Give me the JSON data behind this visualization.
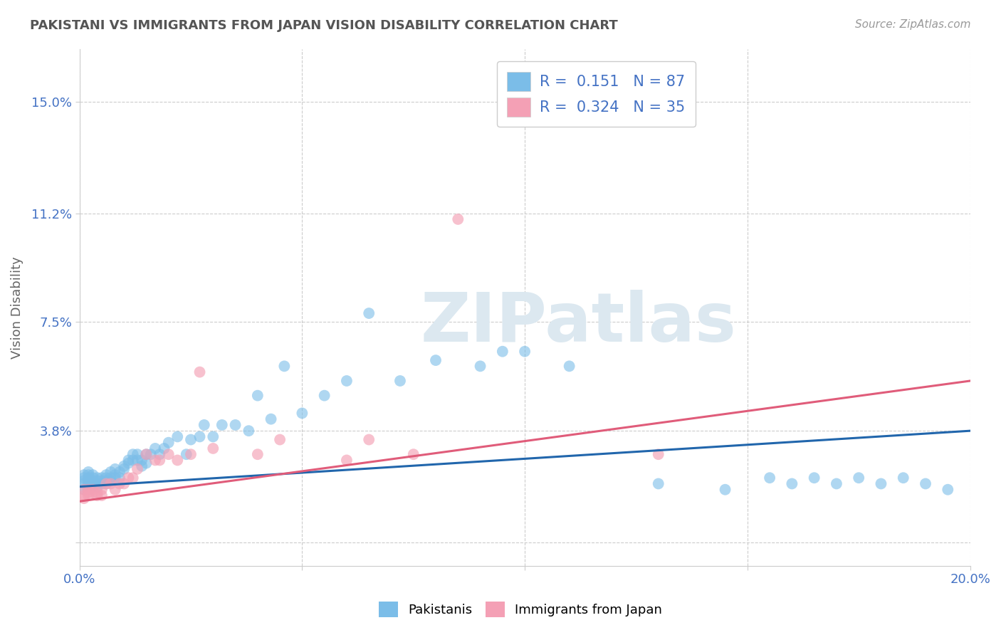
{
  "title": "PAKISTANI VS IMMIGRANTS FROM JAPAN VISION DISABILITY CORRELATION CHART",
  "source": "Source: ZipAtlas.com",
  "ylabel": "Vision Disability",
  "xlim": [
    0.0,
    0.2
  ],
  "ylim": [
    -0.008,
    0.168
  ],
  "xticks": [
    0.0,
    0.05,
    0.1,
    0.15,
    0.2
  ],
  "xticklabels": [
    "0.0%",
    "",
    "",
    "",
    "20.0%"
  ],
  "yticks": [
    0.0,
    0.038,
    0.075,
    0.112,
    0.15
  ],
  "yticklabels": [
    "",
    "3.8%",
    "7.5%",
    "11.2%",
    "15.0%"
  ],
  "blue_R": 0.151,
  "blue_N": 87,
  "pink_R": 0.324,
  "pink_N": 35,
  "blue_color": "#7bbde8",
  "pink_color": "#f4a0b5",
  "blue_line_color": "#2166ac",
  "pink_line_color": "#e05c7a",
  "title_color": "#555555",
  "axis_label_color": "#666666",
  "tick_color": "#4472C4",
  "grid_color": "#cccccc",
  "watermark": "ZIPatlas",
  "watermark_color": "#dce8f0",
  "legend_label_blue": "Pakistanis",
  "legend_label_pink": "Immigrants from Japan",
  "blue_x": [
    0.001,
    0.001,
    0.001,
    0.001,
    0.001,
    0.002,
    0.002,
    0.002,
    0.002,
    0.002,
    0.002,
    0.002,
    0.003,
    0.003,
    0.003,
    0.003,
    0.003,
    0.003,
    0.004,
    0.004,
    0.004,
    0.004,
    0.005,
    0.005,
    0.005,
    0.006,
    0.006,
    0.006,
    0.006,
    0.007,
    0.007,
    0.007,
    0.008,
    0.008,
    0.008,
    0.009,
    0.009,
    0.01,
    0.01,
    0.011,
    0.011,
    0.012,
    0.012,
    0.013,
    0.013,
    0.014,
    0.014,
    0.015,
    0.015,
    0.016,
    0.017,
    0.018,
    0.019,
    0.02,
    0.022,
    0.024,
    0.025,
    0.027,
    0.028,
    0.03,
    0.032,
    0.035,
    0.038,
    0.04,
    0.043,
    0.046,
    0.05,
    0.055,
    0.06,
    0.065,
    0.072,
    0.08,
    0.09,
    0.095,
    0.1,
    0.11,
    0.13,
    0.145,
    0.155,
    0.16,
    0.165,
    0.17,
    0.175,
    0.18,
    0.185,
    0.19,
    0.195
  ],
  "blue_y": [
    0.02,
    0.021,
    0.022,
    0.023,
    0.018,
    0.02,
    0.021,
    0.022,
    0.019,
    0.018,
    0.023,
    0.024,
    0.02,
    0.021,
    0.022,
    0.019,
    0.02,
    0.023,
    0.021,
    0.02,
    0.022,
    0.019,
    0.021,
    0.02,
    0.022,
    0.02,
    0.021,
    0.022,
    0.023,
    0.021,
    0.024,
    0.022,
    0.022,
    0.023,
    0.025,
    0.022,
    0.024,
    0.025,
    0.026,
    0.027,
    0.028,
    0.028,
    0.03,
    0.03,
    0.028,
    0.026,
    0.028,
    0.03,
    0.027,
    0.03,
    0.032,
    0.03,
    0.032,
    0.034,
    0.036,
    0.03,
    0.035,
    0.036,
    0.04,
    0.036,
    0.04,
    0.04,
    0.038,
    0.05,
    0.042,
    0.06,
    0.044,
    0.05,
    0.055,
    0.078,
    0.055,
    0.062,
    0.06,
    0.065,
    0.065,
    0.06,
    0.02,
    0.018,
    0.022,
    0.02,
    0.022,
    0.02,
    0.022,
    0.02,
    0.022,
    0.02,
    0.018
  ],
  "pink_x": [
    0.001,
    0.001,
    0.001,
    0.002,
    0.002,
    0.002,
    0.003,
    0.003,
    0.004,
    0.004,
    0.005,
    0.005,
    0.006,
    0.007,
    0.008,
    0.009,
    0.01,
    0.011,
    0.012,
    0.013,
    0.015,
    0.017,
    0.018,
    0.02,
    0.022,
    0.025,
    0.027,
    0.03,
    0.04,
    0.045,
    0.06,
    0.065,
    0.075,
    0.085,
    0.13
  ],
  "pink_y": [
    0.018,
    0.016,
    0.015,
    0.018,
    0.016,
    0.017,
    0.018,
    0.017,
    0.017,
    0.016,
    0.018,
    0.016,
    0.02,
    0.02,
    0.018,
    0.02,
    0.02,
    0.022,
    0.022,
    0.025,
    0.03,
    0.028,
    0.028,
    0.03,
    0.028,
    0.03,
    0.058,
    0.032,
    0.03,
    0.035,
    0.028,
    0.035,
    0.03,
    0.11,
    0.03
  ],
  "blue_trend_x": [
    0.0,
    0.2
  ],
  "blue_trend_y": [
    0.019,
    0.038
  ],
  "pink_trend_x": [
    0.0,
    0.2
  ],
  "pink_trend_y": [
    0.014,
    0.055
  ]
}
